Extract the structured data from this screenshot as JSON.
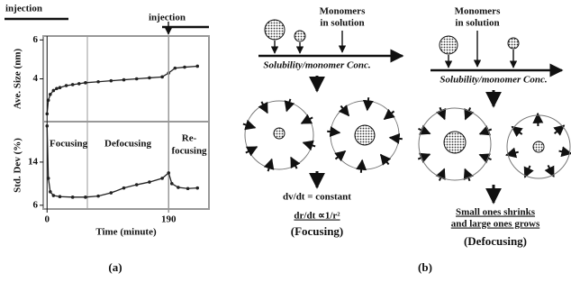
{
  "chart_data": [
    {
      "type": "line",
      "y_label": "Ave. Size (nm)",
      "x": [
        0,
        2,
        5,
        10,
        15,
        20,
        30,
        40,
        50,
        60,
        80,
        100,
        120,
        140,
        160,
        180,
        190,
        200,
        215,
        235
      ],
      "series": [
        {
          "color": "#222222",
          "values": [
            2.2,
            2.9,
            3.2,
            3.4,
            3.5,
            3.55,
            3.65,
            3.7,
            3.75,
            3.8,
            3.85,
            3.9,
            3.95,
            4.0,
            4.05,
            4.1,
            4.3,
            4.55,
            4.6,
            4.65
          ]
        }
      ],
      "xlim": [
        -6,
        253
      ],
      "ylim": [
        1.8,
        6.2
      ],
      "yticks": [
        4,
        6
      ]
    },
    {
      "type": "line",
      "y_label": "Std. Dev (%)",
      "x_label": "Time (minute)",
      "x": [
        0,
        2,
        5,
        10,
        20,
        40,
        60,
        80,
        100,
        120,
        140,
        160,
        180,
        190,
        195,
        205,
        220,
        235
      ],
      "series": [
        {
          "color": "#222222",
          "values": [
            20.7,
            11,
            8.5,
            7.8,
            7.6,
            7.5,
            7.5,
            7.7,
            8.3,
            9.2,
            9.8,
            10.3,
            11,
            12,
            10,
            9.3,
            9.1,
            9.2
          ]
        }
      ],
      "xlim": [
        -6,
        253
      ],
      "ylim": [
        5.3,
        21.5
      ],
      "yticks": [
        6,
        14
      ],
      "xticks": [
        0,
        190
      ]
    }
  ],
  "annotations": {
    "injection_1": "injection",
    "injection_2": "injection",
    "focusing": "Focusing",
    "defocusing": "Defocusing",
    "refocusing": [
      "Re-",
      "focusing"
    ]
  },
  "panel_a_label": "(a)",
  "panel_b": {
    "focusing": {
      "monomers": [
        "Monomers",
        "in solution"
      ],
      "axis_label": "Solubility/monomer Conc.",
      "equation_1": "dv/dt = constant",
      "equation_2": "dr/dt ∝1/r²",
      "caption": "(Focusing)"
    },
    "defocusing": {
      "monomers": [
        "Monomers",
        "in solution"
      ],
      "axis_label": "Solubility/monomer Conc.",
      "statement": [
        "Small ones shrinks",
        "and large ones grows"
      ],
      "caption": "(Defocusing)"
    },
    "label": "(b)"
  }
}
